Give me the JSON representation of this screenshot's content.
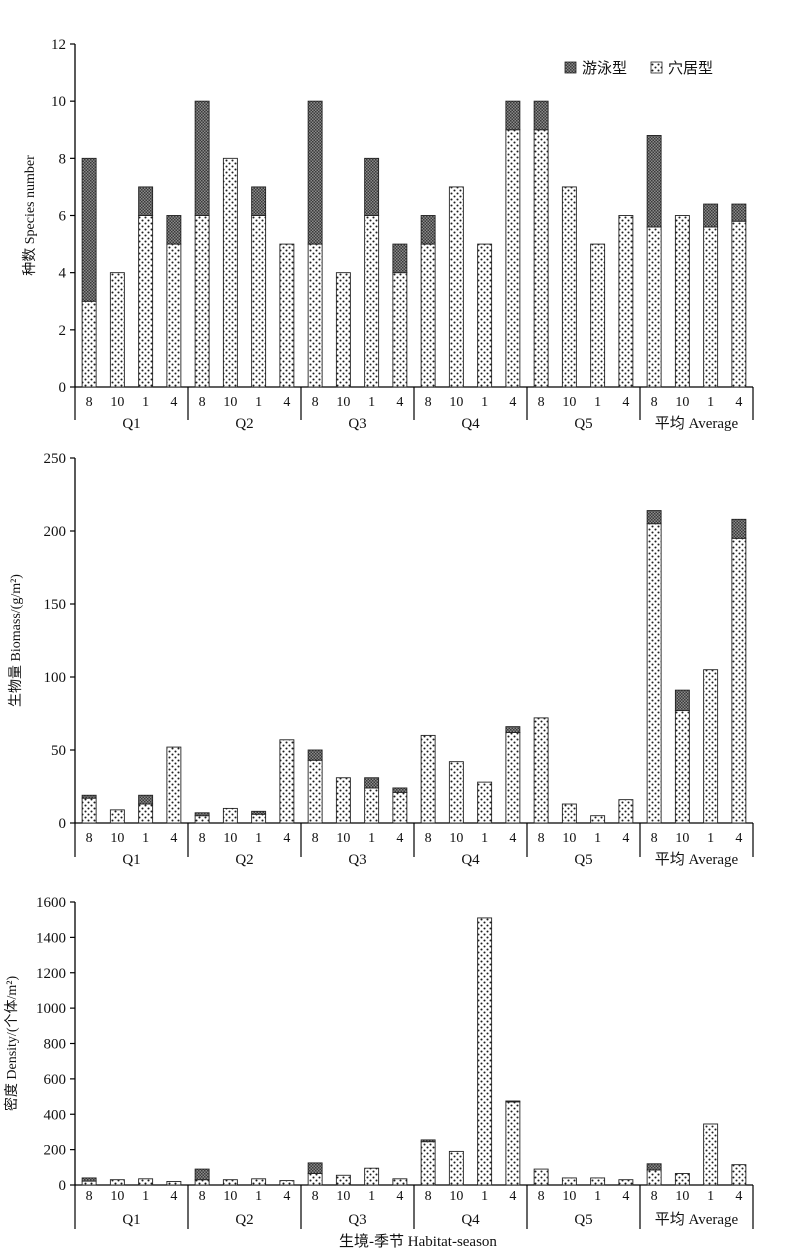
{
  "xlabel": "生境-季节 Habitat-season",
  "legend": {
    "placement": "top-right",
    "swim_label": "游泳型",
    "burrow_label": "穴居型"
  },
  "colors": {
    "swim": "#6e6e6e",
    "burrow": "#1e1e1e",
    "axis": "#000000"
  },
  "chart_data": [
    {
      "type": "bar",
      "stacked": true,
      "ylabel": "种数 Species number",
      "ylim": [
        0,
        12
      ],
      "yticks": [
        0,
        2,
        4,
        6,
        8,
        10,
        12
      ],
      "groups": [
        "Q1",
        "Q2",
        "Q3",
        "Q4",
        "Q5",
        "平均 Average"
      ],
      "seasons": [
        "8",
        "10",
        "1",
        "4"
      ],
      "series": [
        {
          "name": "穴居型",
          "values": [
            3,
            4,
            6,
            5,
            6,
            8,
            6,
            5,
            5,
            4,
            6,
            4,
            5,
            7,
            5,
            9,
            9,
            7,
            5,
            6,
            5.6,
            6,
            5.6,
            5.8
          ]
        },
        {
          "name": "游泳型",
          "values": [
            5,
            0,
            1,
            1,
            4,
            0,
            1,
            0,
            5,
            0,
            2,
            1,
            1,
            0,
            0,
            1,
            1,
            0,
            0,
            0,
            3.2,
            0,
            0.8,
            0.6
          ]
        }
      ],
      "legend": "top-right"
    },
    {
      "type": "bar",
      "stacked": true,
      "ylabel": "生物量 Biomass/(g/m²)",
      "ylim": [
        0,
        250
      ],
      "yticks": [
        0,
        50,
        100,
        150,
        200,
        250
      ],
      "groups": [
        "Q1",
        "Q2",
        "Q3",
        "Q4",
        "Q5",
        "平均 Average"
      ],
      "seasons": [
        "8",
        "10",
        "1",
        "4"
      ],
      "series": [
        {
          "name": "穴居型",
          "values": [
            17,
            9,
            13,
            52,
            5,
            10,
            6,
            57,
            43,
            31,
            24,
            21,
            60,
            42,
            28,
            62,
            72,
            13,
            5,
            16,
            205,
            77,
            105,
            195
          ]
        },
        {
          "name": "游泳型",
          "values": [
            2,
            0,
            6,
            0,
            2,
            0,
            2,
            0,
            7,
            0,
            7,
            3,
            0,
            0,
            0,
            4,
            0,
            0,
            0,
            0,
            9,
            14,
            0,
            13
          ]
        }
      ]
    },
    {
      "type": "bar",
      "stacked": true,
      "ylabel": "密度 Density/(个体/m²)",
      "ylim": [
        0,
        1600
      ],
      "yticks": [
        0,
        200,
        400,
        600,
        800,
        1000,
        1200,
        1400,
        1600
      ],
      "groups": [
        "Q1",
        "Q2",
        "Q3",
        "Q4",
        "Q5",
        "平均 Average"
      ],
      "seasons": [
        "8",
        "10",
        "1",
        "4"
      ],
      "series": [
        {
          "name": "穴居型",
          "values": [
            22,
            30,
            35,
            20,
            30,
            30,
            35,
            25,
            65,
            55,
            95,
            35,
            245,
            190,
            1510,
            470,
            90,
            40,
            40,
            30,
            85,
            65,
            345,
            115
          ]
        },
        {
          "name": "游泳型",
          "values": [
            18,
            0,
            0,
            0,
            60,
            0,
            0,
            0,
            60,
            0,
            0,
            0,
            10,
            0,
            0,
            5,
            0,
            0,
            0,
            0,
            35,
            0,
            0,
            0
          ]
        }
      ]
    }
  ]
}
